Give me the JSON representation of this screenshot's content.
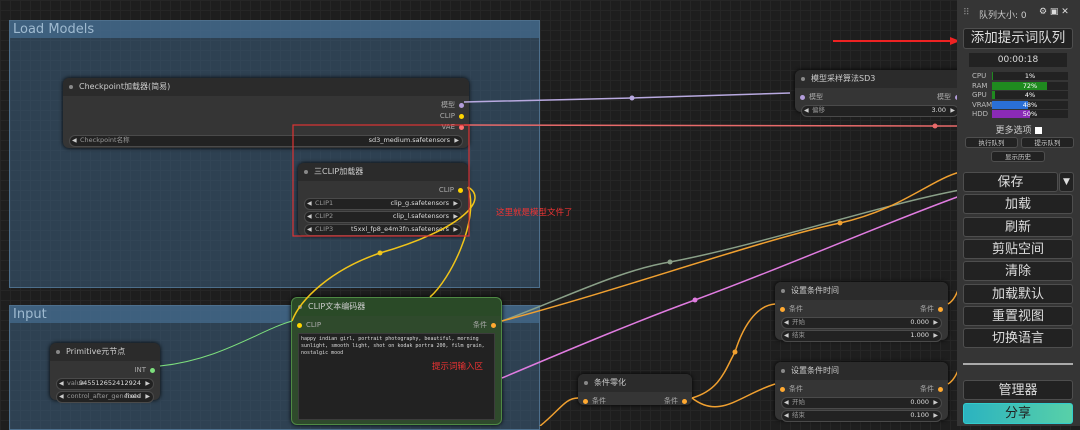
{
  "groups": [
    "Load Models",
    "Input"
  ],
  "nodes": {
    "checkpoint": {
      "title": "Checkpoint加载器(简易)",
      "outputs": [
        "模型",
        "CLIP",
        "VAE"
      ],
      "widgets": [
        {
          "label": "Checkpoint名称",
          "value": "sd3_medium.safetensors"
        }
      ]
    },
    "triple_clip": {
      "title": "三CLIP加载器",
      "outputs": [
        "CLIP"
      ],
      "widgets": [
        {
          "label": "CLIP1",
          "value": "clip_g.safetensors"
        },
        {
          "label": "CLIP2",
          "value": "clip_l.safetensors"
        },
        {
          "label": "CLIP3",
          "value": "t5xxl_fp8_e4m3fn.safetensors"
        }
      ]
    },
    "sampling": {
      "title": "模型采样算法SD3",
      "inputs": [
        "模型"
      ],
      "outputs": [
        "模型"
      ],
      "widgets": [
        {
          "label": "偏移",
          "value": "3.00"
        }
      ]
    },
    "clip_text": {
      "title": "CLIP文本编码器",
      "inputs": [
        "CLIP"
      ],
      "outputs": [
        "条件"
      ],
      "text": "happy indian girl, portrait photography, beautiful, morning sunlight, smooth light, shot on kodak portra 200, film grain, nostalgic mood"
    },
    "primitive": {
      "title": "Primitive元节点",
      "outputs": [
        "INT"
      ],
      "widgets": [
        {
          "label": "value",
          "value": "945512652412924"
        },
        {
          "label": "control_after_generate",
          "value": "fixed"
        }
      ]
    },
    "cond_zero": {
      "title": "条件零化",
      "inputs": [
        "条件"
      ],
      "outputs": [
        "条件"
      ]
    },
    "cond_time": [
      {
        "title": "设置条件时间",
        "inputs": [
          "条件"
        ],
        "outputs": [
          "条件"
        ],
        "widgets": [
          {
            "label": "开始",
            "value": "0.000"
          },
          {
            "label": "结束",
            "value": "1.000"
          }
        ]
      },
      {
        "title": "设置条件时间",
        "inputs": [
          "条件"
        ],
        "outputs": [
          "条件"
        ],
        "widgets": [
          {
            "label": "开始",
            "value": "0.000"
          },
          {
            "label": "结束",
            "value": "0.100"
          }
        ]
      }
    ]
  },
  "annotations": [
    "这里就是模型文件了",
    "提示词输入区"
  ],
  "panel": {
    "queue_size": "队列大小: 0",
    "queue_button": "添加提示词队列",
    "timer": "00:00:18",
    "stats": [
      {
        "label": "CPU",
        "value": 1,
        "value_label": "1%"
      },
      {
        "label": "RAM",
        "value": 72,
        "value_label": "72%"
      },
      {
        "label": "GPU",
        "value": 4,
        "value_label": "4%"
      },
      {
        "label": "VRAM",
        "value": 48,
        "value_label": "48%"
      },
      {
        "label": "HDD",
        "value": 50,
        "value_label": "50%"
      }
    ],
    "more_options": "更多选项",
    "small_buttons": [
      "执行队列",
      "提示队列"
    ],
    "history": "显示历史",
    "buttons": [
      "保存",
      "加载",
      "刷新",
      "剪贴空间",
      "清除",
      "加载默认",
      "重置视图",
      "切换语言"
    ],
    "manager": "管理器",
    "share": "分享"
  }
}
